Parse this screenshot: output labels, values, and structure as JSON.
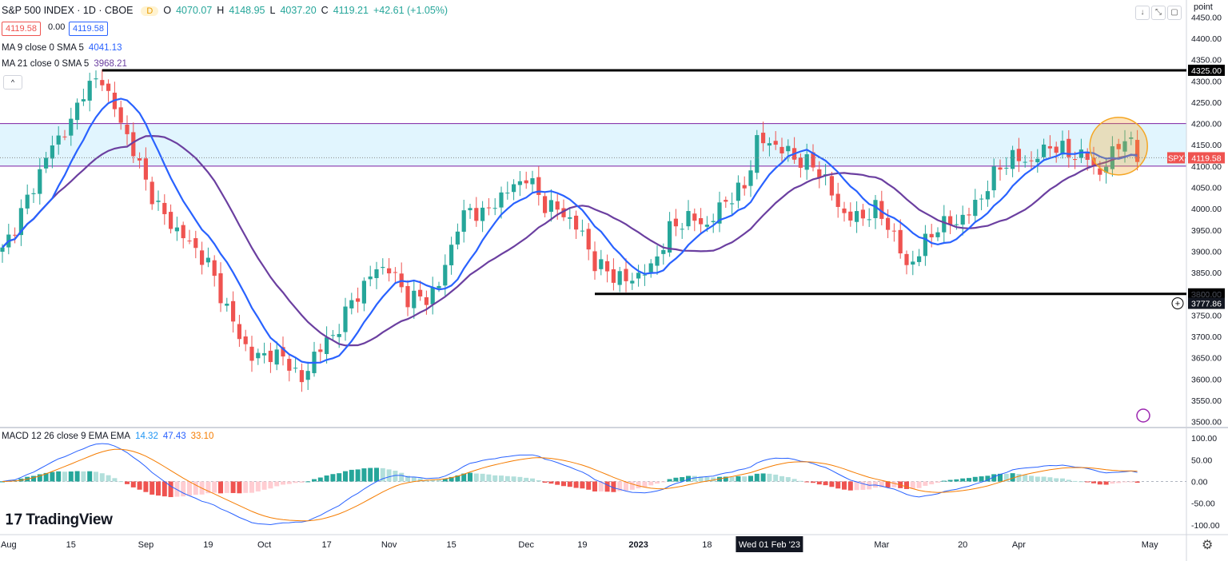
{
  "header": {
    "title": "S&P 500 INDEX · 1D · CBOE",
    "market_badge": "D",
    "ohlc": [
      {
        "label": "O",
        "value": "4070.07"
      },
      {
        "label": "H",
        "value": "4148.95"
      },
      {
        "label": "L",
        "value": "4037.20"
      },
      {
        "label": "C",
        "value": "4119.21"
      },
      {
        "label": "",
        "value": "+42.61 (+1.05%)"
      }
    ],
    "bid": "4119.58",
    "spread": "0.00",
    "ask": "4119.58"
  },
  "indicators": {
    "ma9": {
      "label": "MA 9 close 0 SMA 5",
      "value": "4041.13"
    },
    "ma21": {
      "label": "MA 21 close 0 SMA 5",
      "value": "3968.21"
    },
    "macd": {
      "label": "MACD 12 26 close 9 EMA EMA",
      "hist": "14.32",
      "macd": "47.43",
      "signal": "33.10"
    }
  },
  "axis_unit": "point",
  "branding": "TradingView",
  "window_buttons": [
    "↓",
    "⤡",
    "▢"
  ],
  "colors": {
    "up": "#26a69a",
    "down": "#ef5350",
    "ma9": "#2962ff",
    "ma21": "#6b3fa0",
    "macd_line": "#2962ff",
    "signal_line": "#f57c00",
    "zone": "#e1f5fe",
    "zone_border": "#7b1fa2"
  },
  "chart_data": {
    "type": "candlestick",
    "title": "S&P 500 INDEX · 1D · CBOE",
    "x_ticks": [
      {
        "label": "Aug",
        "t": 1
      },
      {
        "label": "15",
        "t": 11
      },
      {
        "label": "Sep",
        "t": 23
      },
      {
        "label": "19",
        "t": 33
      },
      {
        "label": "Oct",
        "t": 42
      },
      {
        "label": "17",
        "t": 52
      },
      {
        "label": "Nov",
        "t": 62
      },
      {
        "label": "15",
        "t": 72
      },
      {
        "label": "Dec",
        "t": 84
      },
      {
        "label": "19",
        "t": 93
      },
      {
        "label": "2023",
        "t": 102
      },
      {
        "label": "18",
        "t": 113
      },
      {
        "label": "Wed 01 Feb '23",
        "t": 123
      },
      {
        "label": "Mar",
        "t": 141
      },
      {
        "label": "20",
        "t": 154
      },
      {
        "label": "Apr",
        "t": 163
      },
      {
        "label": "May",
        "t": 184
      }
    ],
    "y_ticks": [
      3500,
      3550,
      3600,
      3650,
      3700,
      3750,
      3800,
      3850,
      3900,
      3950,
      4000,
      4050,
      4100,
      4150,
      4200,
      4250,
      4300,
      4350,
      4400,
      4450
    ],
    "ylim": [
      3490,
      4490
    ],
    "support_resistance": [
      {
        "label": "4325.00",
        "value": 4325,
        "t_start": 16
      },
      {
        "label": "3800.00",
        "value": 3800,
        "t_start": 95
      }
    ],
    "zone": {
      "low": 4100,
      "high": 4200
    },
    "last_price": {
      "symbol": "SPX",
      "label": "4119.58",
      "value": 4119.58
    },
    "crosshair_label": "3777.86",
    "close_anchors": [
      [
        0,
        3900
      ],
      [
        3,
        3990
      ],
      [
        8,
        4150
      ],
      [
        11,
        4200
      ],
      [
        13,
        4280
      ],
      [
        16,
        4305
      ],
      [
        19,
        4200
      ],
      [
        21,
        4140
      ],
      [
        23,
        4060
      ],
      [
        26,
        3980
      ],
      [
        30,
        3920
      ],
      [
        33,
        3870
      ],
      [
        37,
        3730
      ],
      [
        40,
        3650
      ],
      [
        43,
        3660
      ],
      [
        46,
        3640
      ],
      [
        48,
        3590
      ],
      [
        50,
        3660
      ],
      [
        53,
        3700
      ],
      [
        56,
        3780
      ],
      [
        60,
        3860
      ],
      [
        62,
        3860
      ],
      [
        65,
        3790
      ],
      [
        68,
        3790
      ],
      [
        70,
        3820
      ],
      [
        73,
        3960
      ],
      [
        75,
        4000
      ],
      [
        77,
        3985
      ],
      [
        80,
        4030
      ],
      [
        84,
        4075
      ],
      [
        87,
        4010
      ],
      [
        90,
        3990
      ],
      [
        93,
        3940
      ],
      [
        95,
        3870
      ],
      [
        98,
        3845
      ],
      [
        100,
        3830
      ],
      [
        104,
        3860
      ],
      [
        107,
        3950
      ],
      [
        110,
        3980
      ],
      [
        113,
        3960
      ],
      [
        116,
        4020
      ],
      [
        119,
        4050
      ],
      [
        121,
        4160
      ],
      [
        124,
        4150
      ],
      [
        127,
        4120
      ],
      [
        130,
        4100
      ],
      [
        132,
        4070
      ],
      [
        134,
        4000
      ],
      [
        137,
        3975
      ],
      [
        140,
        4000
      ],
      [
        143,
        3940
      ],
      [
        145,
        3860
      ],
      [
        147,
        3900
      ],
      [
        150,
        3960
      ],
      [
        153,
        3970
      ],
      [
        155,
        3990
      ],
      [
        157,
        4030
      ],
      [
        160,
        4100
      ],
      [
        162,
        4120
      ],
      [
        165,
        4110
      ],
      [
        168,
        4150
      ],
      [
        171,
        4130
      ],
      [
        174,
        4120
      ],
      [
        176,
        4080
      ],
      [
        178,
        4130
      ],
      [
        180,
        4170
      ],
      [
        182,
        4119
      ]
    ],
    "macd_axis_ticks": [
      100,
      50,
      0,
      -50,
      -100
    ],
    "macd_ylim": [
      -115,
      115
    ]
  }
}
